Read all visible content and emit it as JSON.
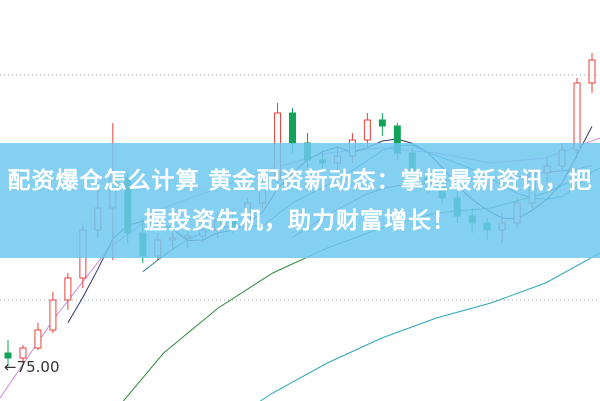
{
  "title": "配资爆仓怎么计算 黄金配资新动态：掌握最新资讯，把握投资先机，助力财富增长！",
  "chart_data": {
    "type": "candlestick",
    "annotation": "75.00",
    "annotation_arrow": "left",
    "grid": "dotted horizontal",
    "colors": {
      "up": "#e8403a",
      "down": "#12a35a",
      "banner": "#7fcff0"
    },
    "ohlc": [
      [
        76.5,
        77.8,
        75.2,
        76.0
      ],
      [
        76.0,
        77.3,
        75.6,
        77.0
      ],
      [
        77.0,
        79.5,
        76.8,
        78.8
      ],
      [
        78.8,
        82.6,
        78.5,
        81.8
      ],
      [
        81.8,
        84.5,
        80.8,
        84.0
      ],
      [
        84.0,
        89.5,
        83.0,
        88.8
      ],
      [
        88.8,
        93.5,
        88.0,
        91.0
      ],
      [
        91.0,
        99.5,
        85.8,
        94.0
      ],
      [
        94.0,
        94.5,
        87.5,
        88.5
      ],
      [
        88.5,
        90.0,
        85.5,
        86.2
      ],
      [
        86.2,
        88.5,
        85.8,
        87.8
      ],
      [
        87.8,
        89.5,
        86.8,
        88.0
      ],
      [
        88.0,
        89.0,
        87.0,
        88.2
      ],
      [
        88.2,
        89.5,
        87.5,
        88.8
      ],
      [
        88.8,
        90.5,
        88.0,
        89.8
      ],
      [
        89.8,
        90.8,
        88.5,
        89.0
      ],
      [
        89.0,
        92.0,
        88.8,
        91.5
      ],
      [
        91.5,
        94.5,
        91.0,
        93.8
      ],
      [
        93.8,
        101.5,
        93.0,
        100.5
      ],
      [
        100.5,
        101.0,
        96.5,
        97.5
      ],
      [
        97.5,
        98.5,
        95.0,
        95.8
      ],
      [
        95.8,
        96.8,
        94.5,
        95.5
      ],
      [
        95.5,
        97.0,
        94.8,
        96.2
      ],
      [
        96.2,
        98.5,
        95.5,
        97.8
      ],
      [
        97.8,
        100.5,
        97.0,
        99.8
      ],
      [
        99.8,
        100.5,
        98.2,
        99.2
      ],
      [
        99.2,
        99.5,
        95.8,
        96.5
      ],
      [
        96.5,
        97.0,
        93.5,
        94.0
      ],
      [
        94.0,
        94.8,
        92.5,
        93.5
      ],
      [
        93.5,
        94.0,
        91.5,
        92.0
      ],
      [
        92.0,
        92.8,
        89.5,
        90.2
      ],
      [
        90.2,
        91.0,
        88.5,
        89.5
      ],
      [
        89.5,
        90.0,
        87.8,
        88.8
      ],
      [
        88.8,
        90.5,
        87.5,
        89.5
      ],
      [
        89.5,
        92.0,
        89.0,
        91.5
      ],
      [
        91.5,
        95.0,
        91.0,
        94.5
      ],
      [
        94.5,
        96.0,
        93.5,
        95.2
      ],
      [
        95.2,
        97.5,
        94.8,
        96.8
      ],
      [
        96.8,
        104.0,
        96.0,
        103.5
      ],
      [
        103.5,
        106.5,
        102.5,
        105.8
      ]
    ],
    "ma_periods": [
      5,
      10,
      20
    ],
    "long_ma": [
      {
        "color": "#cc88dd",
        "values": [
          72.0,
          80.0,
          87.0,
          91.0,
          93.0,
          95.0,
          96.5,
          97.0,
          96.5,
          95.5,
          96.0,
          98.0
        ]
      },
      {
        "color": "#2e8b3a",
        "values": [
          55.0,
          62.0,
          70.0,
          76.5,
          81.0,
          84.5,
          87.0,
          89.0,
          90.5,
          91.0,
          92.5,
          95.0
        ]
      },
      {
        "color": "#2aa8b8",
        "values": [
          50.0,
          55.0,
          60.0,
          65.0,
          69.0,
          72.5,
          75.5,
          78.0,
          80.0,
          81.5,
          83.5,
          86.5
        ]
      }
    ]
  }
}
